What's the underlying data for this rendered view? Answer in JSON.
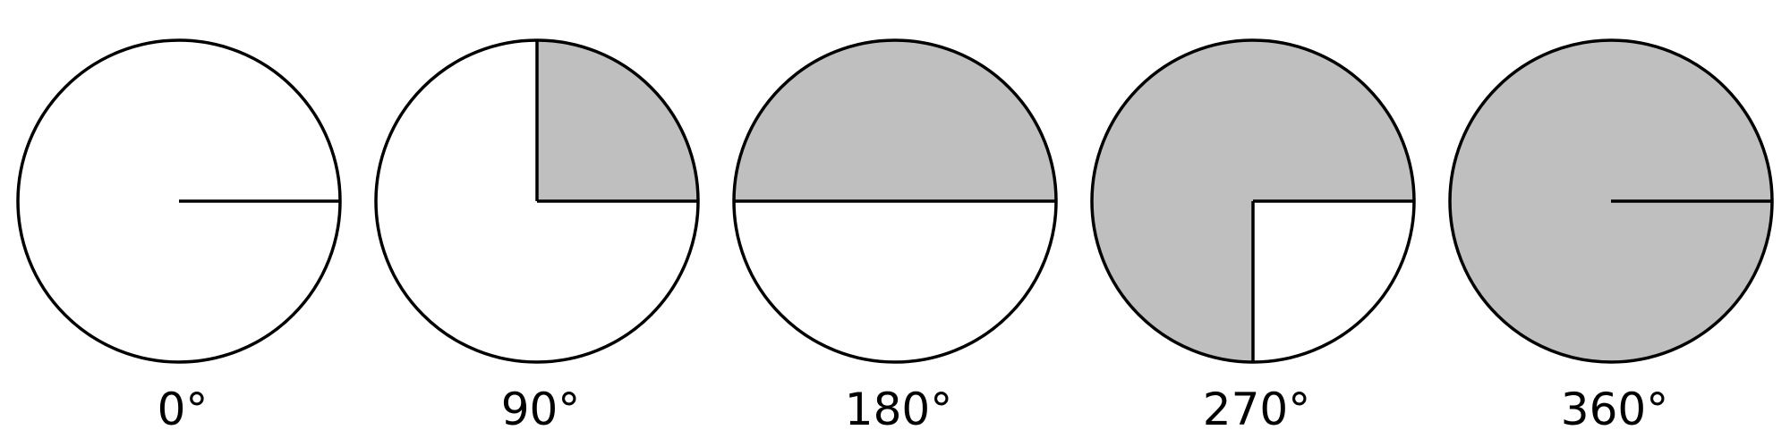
{
  "colors": {
    "fill": "#bfbfbf",
    "stroke": "#000000",
    "background": "#ffffff"
  },
  "angles": [
    {
      "label": "0°",
      "degrees": 0
    },
    {
      "label": "90°",
      "degrees": 90
    },
    {
      "label": "180°",
      "degrees": 180
    },
    {
      "label": "270°",
      "degrees": 270
    },
    {
      "label": "360°",
      "degrees": 360
    }
  ]
}
